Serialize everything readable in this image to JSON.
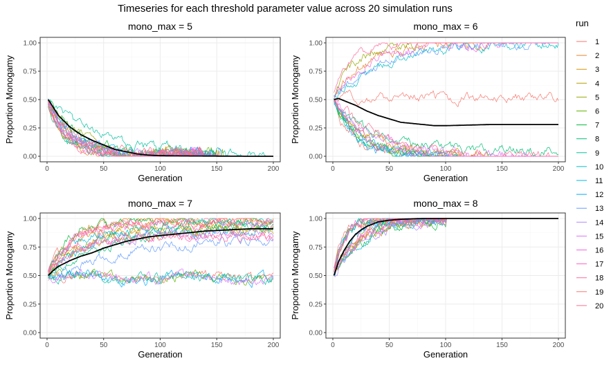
{
  "title": "Timeseries for each threshold parameter value across 20 simulation runs",
  "legend": {
    "title": "run",
    "position": "right",
    "items": [
      "1",
      "2",
      "3",
      "4",
      "5",
      "6",
      "7",
      "8",
      "9",
      "10",
      "11",
      "12",
      "13",
      "14",
      "15",
      "16",
      "17",
      "18",
      "19",
      "20"
    ],
    "colors": [
      "#F8766D",
      "#E88526",
      "#D39200",
      "#B79F00",
      "#93AA00",
      "#5EB300",
      "#00BA38",
      "#00BF74",
      "#00C19F",
      "#00BFC4",
      "#00B9E3",
      "#00ADFA",
      "#619CFF",
      "#AE87FF",
      "#DB72FB",
      "#F564E3",
      "#FF61C3",
      "#FF699C",
      "#F8766D",
      "#FF6C91"
    ]
  },
  "chart_data": [
    {
      "type": "line",
      "title": "mono_max = 5",
      "xlabel": "Generation",
      "ylabel": "Proportion Monogamy",
      "xlim": [
        0,
        200
      ],
      "ylim": [
        0,
        1
      ],
      "x_ticks": [
        "0",
        "50",
        "100",
        "150",
        "200"
      ],
      "y_ticks": [
        "0.00",
        "0.25",
        "0.50",
        "0.75",
        "1.00"
      ],
      "grid": true,
      "mean_line": {
        "x": [
          1,
          5,
          10,
          20,
          30,
          40,
          50,
          60,
          70,
          80,
          90,
          100,
          120,
          140,
          160,
          180,
          200
        ],
        "y": [
          0.5,
          0.44,
          0.36,
          0.26,
          0.19,
          0.14,
          0.1,
          0.06,
          0.04,
          0.02,
          0.01,
          0.005,
          0.003,
          0.002,
          0.001,
          0,
          0
        ]
      },
      "runs_start": 0.5,
      "runs_description": [
        {
          "type": "decay",
          "end": 0,
          "spread": 0.15,
          "rate": 0.04
        },
        {
          "type": "decay",
          "end": 0,
          "spread": 0.1,
          "rate": 0.06
        },
        {
          "type": "decay",
          "end": 0,
          "spread": 0.1,
          "rate": 0.025
        }
      ]
    },
    {
      "type": "line",
      "title": "mono_max = 6",
      "xlabel": "Generation",
      "ylabel": "Proportion Monogamy",
      "xlim": [
        0,
        200
      ],
      "ylim": [
        0,
        1
      ],
      "x_ticks": [
        "0",
        "50",
        "100",
        "150",
        "200"
      ],
      "y_ticks": [
        "0.00",
        "0.25",
        "0.50",
        "0.75",
        "1.00"
      ],
      "grid": true,
      "mean_line": {
        "x": [
          1,
          5,
          10,
          20,
          30,
          40,
          50,
          60,
          70,
          80,
          90,
          100,
          120,
          140,
          160,
          180,
          200
        ],
        "y": [
          0.5,
          0.51,
          0.49,
          0.45,
          0.4,
          0.36,
          0.33,
          0.3,
          0.29,
          0.28,
          0.27,
          0.27,
          0.275,
          0.28,
          0.28,
          0.28,
          0.28
        ]
      },
      "runs_start": 0.5
    },
    {
      "type": "line",
      "title": "mono_max = 7",
      "xlabel": "Generation",
      "ylabel": "Proportion Monogamy",
      "xlim": [
        0,
        200
      ],
      "ylim": [
        0,
        1
      ],
      "x_ticks": [
        "0",
        "50",
        "100",
        "150",
        "200"
      ],
      "y_ticks": [
        "0.00",
        "0.25",
        "0.50",
        "0.75",
        "1.00"
      ],
      "grid": true,
      "mean_line": {
        "x": [
          1,
          5,
          10,
          20,
          30,
          40,
          50,
          60,
          70,
          80,
          90,
          100,
          120,
          140,
          160,
          180,
          200
        ],
        "y": [
          0.5,
          0.54,
          0.58,
          0.63,
          0.67,
          0.7,
          0.74,
          0.77,
          0.8,
          0.82,
          0.84,
          0.85,
          0.87,
          0.89,
          0.9,
          0.91,
          0.91
        ]
      },
      "runs_start": 0.5
    },
    {
      "type": "line",
      "title": "mono_max = 8",
      "xlabel": "Generation",
      "ylabel": "Proportion Monogamy",
      "xlim": [
        0,
        200
      ],
      "ylim": [
        0,
        1
      ],
      "x_ticks": [
        "0",
        "50",
        "100",
        "150",
        "200"
      ],
      "y_ticks": [
        "0.00",
        "0.25",
        "0.50",
        "0.75",
        "1.00"
      ],
      "grid": true,
      "mean_line": {
        "x": [
          1,
          5,
          10,
          15,
          20,
          25,
          30,
          40,
          50,
          60,
          70,
          80,
          100,
          150,
          200
        ],
        "y": [
          0.5,
          0.62,
          0.72,
          0.8,
          0.86,
          0.9,
          0.93,
          0.97,
          0.985,
          0.993,
          0.997,
          1,
          1,
          1,
          1
        ]
      },
      "runs_start": 0.5
    }
  ]
}
